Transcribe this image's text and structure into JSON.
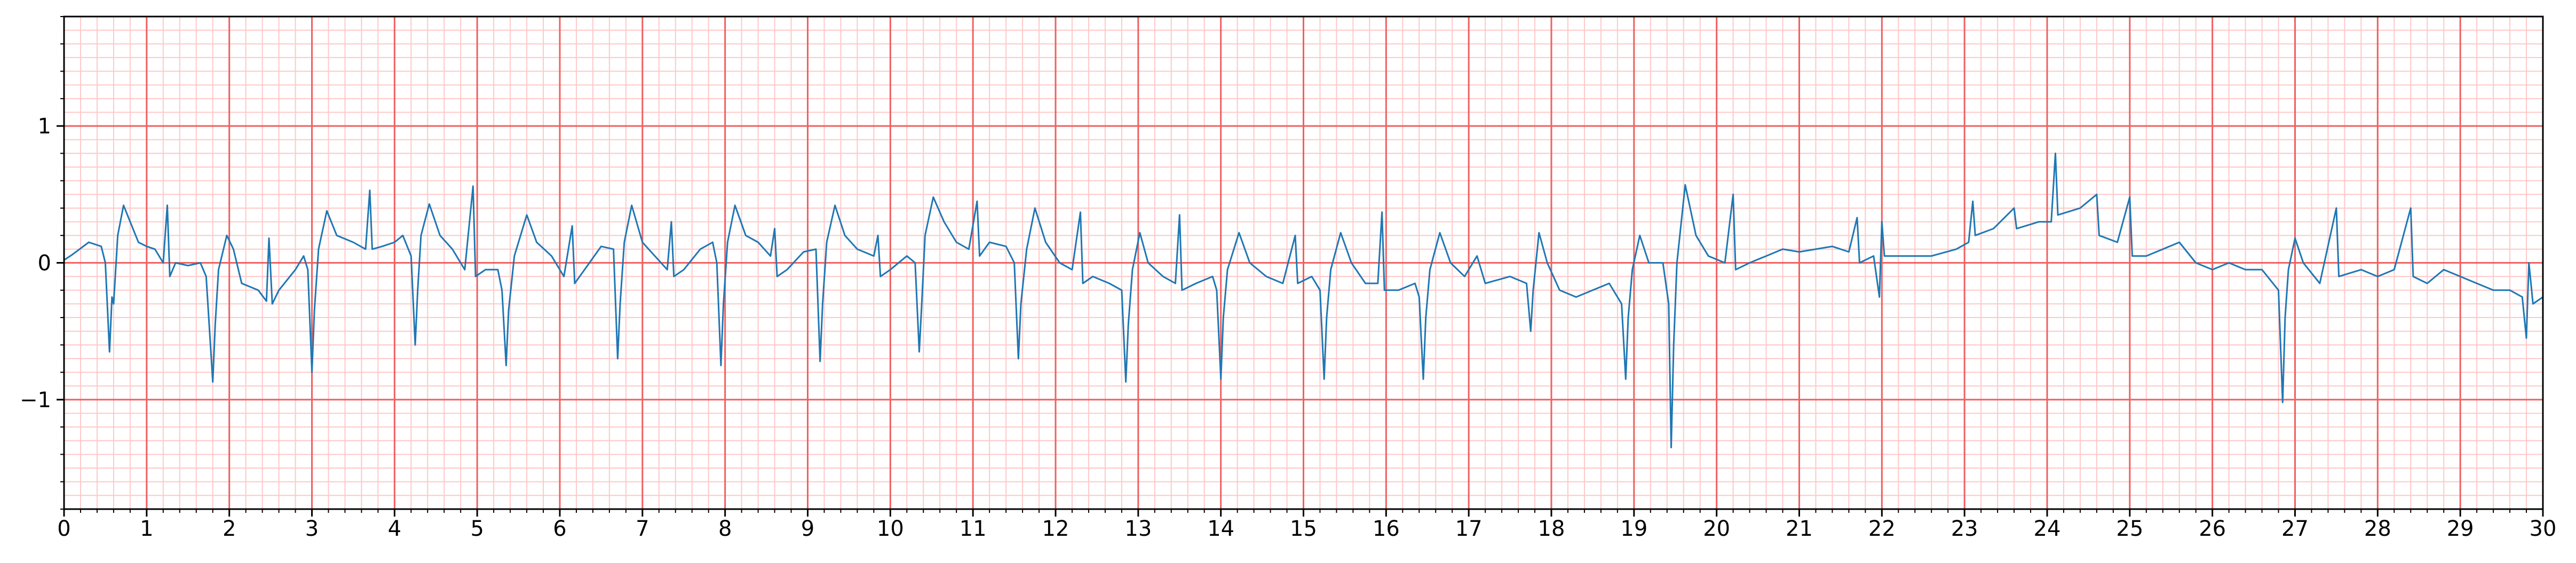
{
  "chart_data": {
    "type": "line",
    "color": "#1f77b4",
    "x": [
      0,
      0.1,
      0.3,
      0.45,
      0.5,
      0.55,
      0.58,
      0.6,
      0.65,
      0.72,
      0.8,
      0.9,
      1.0,
      1.1,
      1.2,
      1.25,
      1.28,
      1.35,
      1.5,
      1.65,
      1.72,
      1.8,
      1.83,
      1.87,
      1.97,
      2.05,
      2.15,
      2.35,
      2.45,
      2.48,
      2.52,
      2.6,
      2.8,
      2.9,
      2.95,
      3.0,
      3.03,
      3.08,
      3.18,
      3.3,
      3.5,
      3.65,
      3.7,
      3.73,
      3.85,
      4.0,
      4.1,
      4.2,
      4.25,
      4.28,
      4.32,
      4.42,
      4.55,
      4.7,
      4.85,
      4.95,
      4.98,
      5.1,
      5.25,
      5.3,
      5.35,
      5.38,
      5.45,
      5.6,
      5.72,
      5.9,
      6.05,
      6.15,
      6.18,
      6.3,
      6.5,
      6.65,
      6.7,
      6.73,
      6.78,
      6.87,
      7.0,
      7.15,
      7.3,
      7.35,
      7.38,
      7.5,
      7.7,
      7.85,
      7.9,
      7.95,
      7.98,
      8.03,
      8.12,
      8.25,
      8.4,
      8.55,
      8.6,
      8.63,
      8.75,
      8.95,
      9.1,
      9.15,
      9.18,
      9.23,
      9.33,
      9.45,
      9.6,
      9.8,
      9.85,
      9.88,
      10.0,
      10.2,
      10.3,
      10.35,
      10.38,
      10.42,
      10.52,
      10.65,
      10.8,
      10.95,
      11.05,
      11.08,
      11.2,
      11.4,
      11.5,
      11.55,
      11.58,
      11.65,
      11.75,
      11.88,
      12.05,
      12.2,
      12.3,
      12.33,
      12.45,
      12.65,
      12.8,
      12.85,
      12.88,
      12.93,
      13.02,
      13.12,
      13.3,
      13.45,
      13.5,
      13.53,
      13.7,
      13.9,
      13.95,
      14.0,
      14.03,
      14.08,
      14.22,
      14.35,
      14.55,
      14.75,
      14.9,
      14.93,
      15.1,
      15.2,
      15.25,
      15.28,
      15.33,
      15.45,
      15.58,
      15.75,
      15.9,
      15.95,
      15.98,
      16.15,
      16.35,
      16.4,
      16.45,
      16.48,
      16.53,
      16.65,
      16.78,
      16.95,
      17.1,
      17.2,
      17.5,
      17.7,
      17.75,
      17.78,
      17.85,
      17.95,
      18.1,
      18.3,
      18.5,
      18.7,
      18.85,
      18.9,
      18.93,
      18.98,
      19.07,
      19.18,
      19.35,
      19.42,
      19.45,
      19.48,
      19.52,
      19.62,
      19.75,
      19.9,
      20.1,
      20.2,
      20.23,
      20.4,
      20.6,
      20.8,
      21.0,
      21.2,
      21.4,
      21.6,
      21.7,
      21.73,
      21.9,
      21.97,
      22.0,
      22.03,
      22.3,
      22.6,
      22.9,
      23.05,
      23.1,
      23.13,
      23.35,
      23.6,
      23.63,
      23.9,
      24.05,
      24.1,
      24.13,
      24.4,
      24.6,
      24.63,
      24.85,
      25.0,
      25.03,
      25.2,
      25.4,
      25.6,
      25.8,
      26.0,
      26.2,
      26.4,
      26.6,
      26.8,
      26.85,
      26.88,
      26.92,
      27.0,
      27.1,
      27.3,
      27.5,
      27.53,
      27.8,
      28.0,
      28.2,
      28.4,
      28.43,
      28.6,
      28.8,
      29.0,
      29.2,
      29.4,
      29.6,
      29.75,
      29.8,
      29.83,
      29.88,
      30.0
    ],
    "values": [
      0.02,
      0.06,
      0.15,
      0.12,
      0.0,
      -0.65,
      -0.25,
      -0.3,
      0.2,
      0.42,
      0.3,
      0.15,
      0.12,
      0.1,
      0.0,
      0.42,
      -0.1,
      0.0,
      -0.02,
      0.0,
      -0.1,
      -0.87,
      -0.45,
      -0.05,
      0.2,
      0.1,
      -0.15,
      -0.2,
      -0.28,
      0.18,
      -0.3,
      -0.2,
      -0.05,
      0.05,
      -0.05,
      -0.8,
      -0.35,
      0.1,
      0.38,
      0.2,
      0.15,
      0.1,
      0.53,
      0.1,
      0.12,
      0.15,
      0.2,
      0.05,
      -0.6,
      -0.2,
      0.2,
      0.43,
      0.2,
      0.1,
      -0.05,
      0.56,
      -0.1,
      -0.05,
      -0.05,
      -0.2,
      -0.75,
      -0.35,
      0.05,
      0.35,
      0.15,
      0.05,
      -0.1,
      0.27,
      -0.15,
      -0.05,
      0.12,
      0.1,
      -0.7,
      -0.3,
      0.15,
      0.42,
      0.15,
      0.05,
      -0.05,
      0.3,
      -0.1,
      -0.05,
      0.1,
      0.15,
      0.0,
      -0.75,
      -0.3,
      0.15,
      0.42,
      0.2,
      0.15,
      0.05,
      0.25,
      -0.1,
      -0.05,
      0.08,
      0.1,
      -0.72,
      -0.3,
      0.15,
      0.42,
      0.2,
      0.1,
      0.05,
      0.2,
      -0.1,
      -0.05,
      0.05,
      0.0,
      -0.65,
      -0.3,
      0.2,
      0.48,
      0.3,
      0.15,
      0.1,
      0.45,
      0.05,
      0.15,
      0.12,
      0.0,
      -0.7,
      -0.3,
      0.1,
      0.4,
      0.15,
      0.0,
      -0.05,
      0.37,
      -0.15,
      -0.1,
      -0.15,
      -0.2,
      -0.87,
      -0.45,
      -0.05,
      0.22,
      0.0,
      -0.1,
      -0.15,
      0.35,
      -0.2,
      -0.15,
      -0.1,
      -0.2,
      -0.85,
      -0.4,
      -0.05,
      0.22,
      0.0,
      -0.1,
      -0.15,
      0.2,
      -0.15,
      -0.1,
      -0.2,
      -0.85,
      -0.4,
      -0.05,
      0.22,
      0.0,
      -0.15,
      -0.15,
      0.37,
      -0.2,
      -0.2,
      -0.15,
      -0.25,
      -0.85,
      -0.4,
      -0.05,
      0.22,
      0.0,
      -0.1,
      0.05,
      -0.15,
      -0.1,
      -0.15,
      -0.5,
      -0.2,
      0.22,
      0.0,
      -0.2,
      -0.25,
      -0.2,
      -0.15,
      -0.3,
      -0.85,
      -0.4,
      -0.05,
      0.2,
      0.0,
      0.0,
      -0.3,
      -1.35,
      -0.6,
      0.0,
      0.57,
      0.2,
      0.05,
      0.0,
      0.5,
      -0.05,
      0.0,
      0.05,
      0.1,
      0.08,
      0.1,
      0.12,
      0.08,
      0.33,
      0.0,
      0.05,
      -0.25,
      0.3,
      0.05,
      0.05,
      0.05,
      0.1,
      0.15,
      0.45,
      0.2,
      0.25,
      0.4,
      0.25,
      0.3,
      0.3,
      0.8,
      0.35,
      0.4,
      0.5,
      0.2,
      0.15,
      0.48,
      0.05,
      0.05,
      0.1,
      0.15,
      0.0,
      -0.05,
      0.0,
      -0.05,
      -0.05,
      -0.2,
      -1.02,
      -0.4,
      -0.05,
      0.18,
      0.0,
      -0.15,
      0.4,
      -0.1,
      -0.05,
      -0.1,
      -0.05,
      0.4,
      -0.1,
      -0.15,
      -0.05,
      -0.1,
      -0.15,
      -0.2,
      -0.2,
      -0.25,
      -0.55,
      0.0,
      -0.3,
      -0.25
    ],
    "xlim": [
      0,
      30
    ],
    "ylim": [
      -1.8,
      1.8
    ],
    "xticks": [
      0,
      1,
      2,
      3,
      4,
      5,
      6,
      7,
      8,
      9,
      10,
      11,
      12,
      13,
      14,
      15,
      16,
      17,
      18,
      19,
      20,
      21,
      22,
      23,
      24,
      25,
      26,
      27,
      28,
      29,
      30
    ],
    "yticks": [
      {
        "value": -1,
        "label": "−1"
      },
      0,
      1
    ],
    "grid": true,
    "x_minor_step": 0.2,
    "y_minor_step": 0.1
  }
}
